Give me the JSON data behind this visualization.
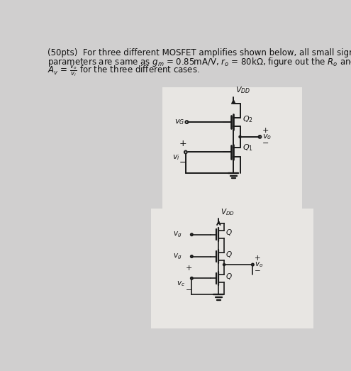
{
  "bg_color": "#d0cfcf",
  "line_color": "#1a1a1a",
  "text_color": "#111111",
  "circuit1_bg": "#e8e6e3",
  "circuit2_bg": "#e8e6e3"
}
